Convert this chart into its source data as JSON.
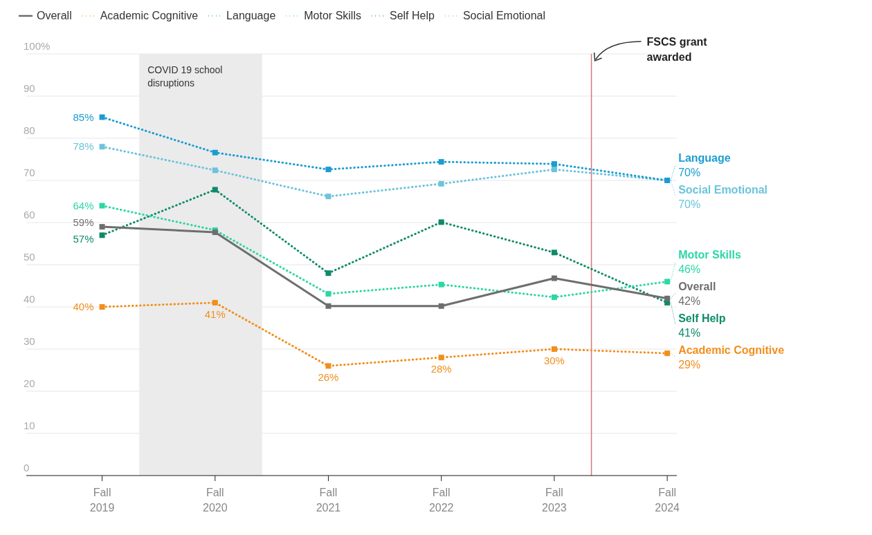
{
  "chart_data": {
    "type": "line",
    "x": [
      "2019",
      "2020",
      "2021",
      "2022",
      "2023",
      "2024"
    ],
    "xlim": [
      "2018-05",
      "2024-02"
    ],
    "xticks": [
      {
        "value": "2019",
        "label": "Fall 2019"
      },
      {
        "value": "2020",
        "label": "Fall 2020"
      },
      {
        "value": "2021",
        "label": "Fall 2021"
      },
      {
        "value": "2022",
        "label": "Fall 2022"
      },
      {
        "value": "2023",
        "label": "Fall 2023"
      },
      {
        "value": "2024",
        "label": "Fall 2024"
      }
    ],
    "ylim": [
      0,
      100
    ],
    "yticks": [
      0,
      10,
      20,
      30,
      40,
      50,
      60,
      70,
      80,
      90,
      {
        "value": 100,
        "label": "100%"
      }
    ],
    "grid": "y",
    "legend": "top left",
    "marker": "square",
    "series": [
      {
        "name": "Overall",
        "color": "#6e6e6e",
        "line_style": "solid",
        "values": [
          59,
          57.7,
          40.2,
          40.2,
          46.8,
          42
        ],
        "value_labels": [
          "59%",
          null,
          null,
          null,
          null,
          "42%"
        ]
      },
      {
        "name": "Academic Cognitive",
        "color": "#f28e1c",
        "line_style": "dotted",
        "values": [
          40,
          41,
          26,
          28,
          30,
          29
        ],
        "value_labels": [
          "40%",
          "41%",
          "26%",
          "28%",
          "30%",
          "29%"
        ]
      },
      {
        "name": "Language",
        "color": "#1a9dd0",
        "line_style": "dotted",
        "values": [
          85,
          76.6,
          72.6,
          74.4,
          73.9,
          70
        ],
        "value_labels": [
          "85%",
          null,
          null,
          null,
          null,
          "70%"
        ]
      },
      {
        "name": "Motor Skills",
        "color": "#2ed6a6",
        "line_style": "dotted",
        "values": [
          64,
          58.2,
          43.1,
          45.3,
          42.3,
          46
        ],
        "value_labels": [
          "64%",
          null,
          null,
          null,
          null,
          "46%"
        ]
      },
      {
        "name": "Self Help",
        "color": "#0e8a6a",
        "line_style": "dotted",
        "values": [
          57,
          67.8,
          48,
          60.1,
          52.9,
          41
        ],
        "value_labels": [
          "57%",
          null,
          null,
          null,
          null,
          "41%"
        ]
      },
      {
        "name": "Social Emotional",
        "color": "#6cc3dc",
        "line_style": "dotted",
        "values": [
          78,
          72.4,
          66.2,
          69.2,
          72.6,
          70
        ],
        "value_labels": [
          "78%",
          null,
          null,
          null,
          null,
          "70%"
        ]
      }
    ],
    "bands": [
      {
        "axis": "x",
        "from": "2019-05",
        "to": "2020-06",
        "label": "COVID 19 school disruptions",
        "color": "#ebebeb"
      }
    ],
    "ref_lines": [
      {
        "axis": "x",
        "value": "2023-05",
        "label": "FSCS grant awarded",
        "color": "#d9777a"
      }
    ]
  }
}
